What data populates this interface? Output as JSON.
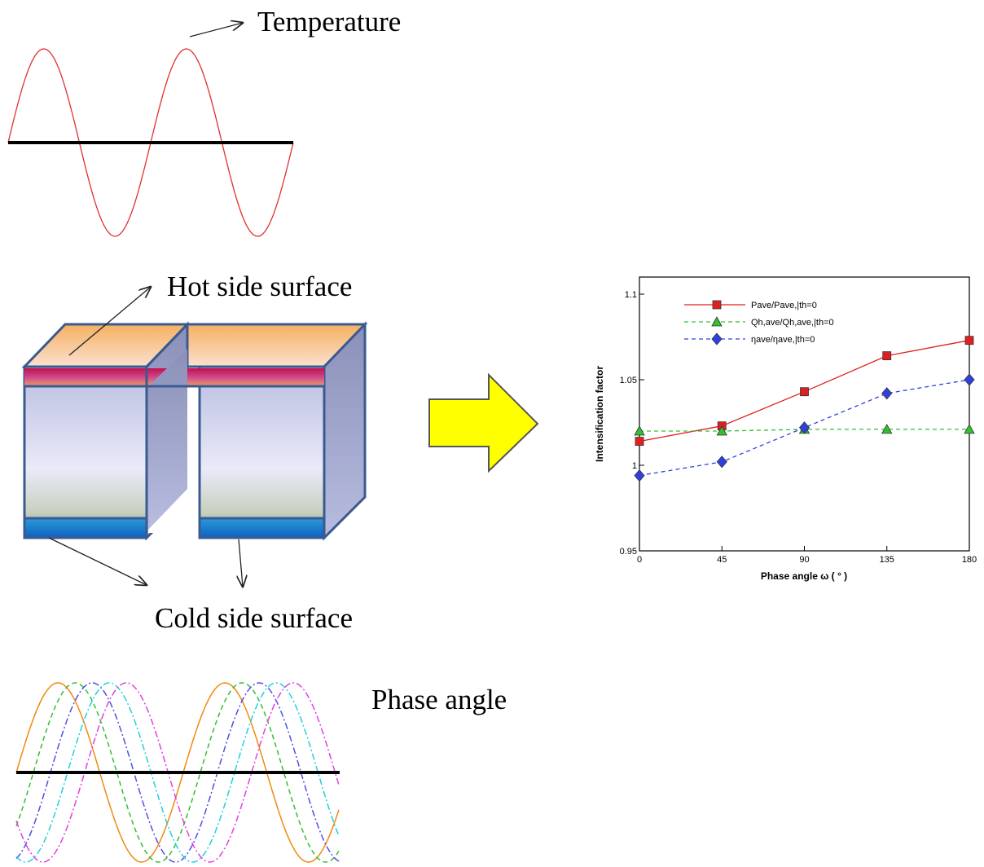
{
  "labels": {
    "temperature": "Temperature",
    "hot_side": "Hot side surface",
    "cold_side": "Cold side surface",
    "phase_angle": "Phase angle"
  },
  "chart_data": {
    "type": "line",
    "x_label": "Phase angle ω ( ° )",
    "y_label": "Intensification factor",
    "x": [
      0,
      45,
      90,
      135,
      180
    ],
    "xlim": [
      0,
      180
    ],
    "xticks": [
      0,
      45,
      90,
      135,
      180
    ],
    "ylim": [
      0.95,
      1.11
    ],
    "yticks": [
      0.95,
      1,
      1.05,
      1.1
    ],
    "series": [
      {
        "name": "Pave/Pave,|th=0",
        "color": "#e02020",
        "dash": "solid",
        "marker": "square",
        "values": [
          1.014,
          1.023,
          1.043,
          1.064,
          1.073
        ]
      },
      {
        "name": "Qh,ave/Qh,ave,|th=0",
        "color": "#30c030",
        "dash": "dashed",
        "marker": "triangle",
        "values": [
          1.02,
          1.02,
          1.021,
          1.021,
          1.021
        ]
      },
      {
        "name": "ηave/ηave,|th=0",
        "color": "#3040e0",
        "dash": "dashed",
        "marker": "diamond",
        "values": [
          0.994,
          1.002,
          1.022,
          1.042,
          1.05
        ]
      }
    ]
  }
}
